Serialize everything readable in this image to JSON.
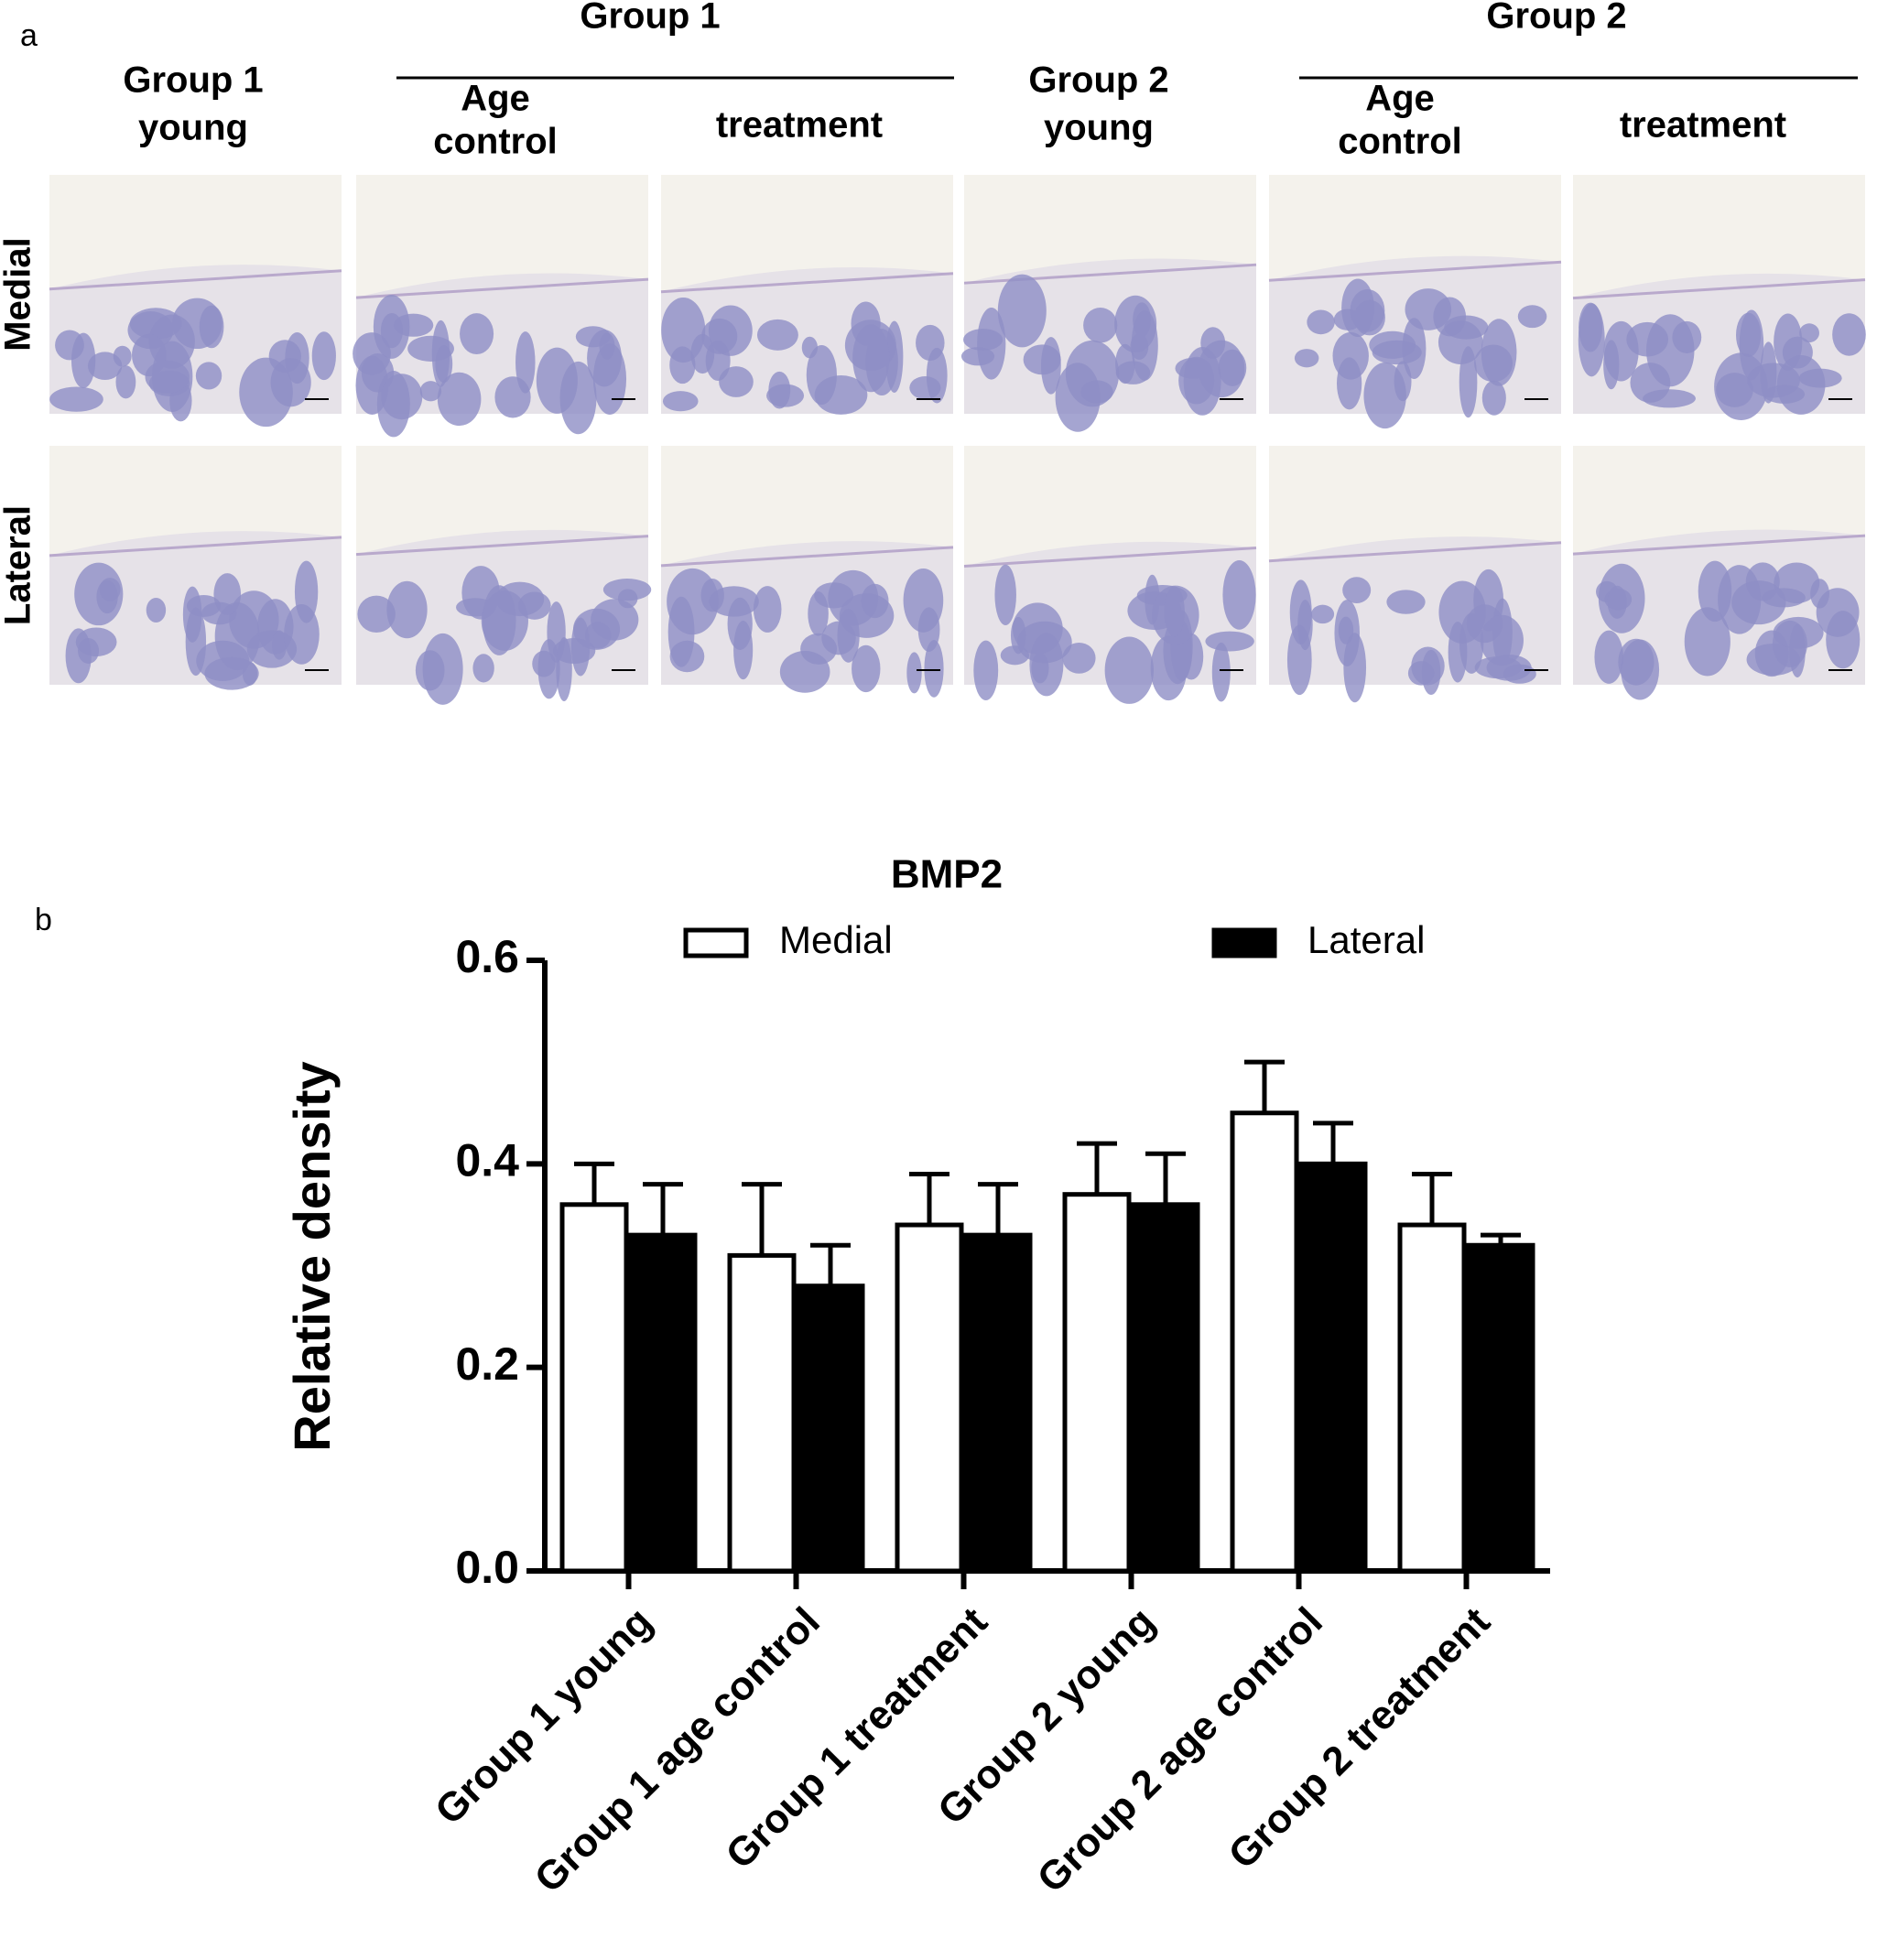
{
  "panel_a": {
    "label": "a",
    "group_headers": [
      "Group 1",
      "Group 2"
    ],
    "column_headers": [
      [
        "Group 1",
        "young"
      ],
      [
        "Age",
        "control"
      ],
      [
        "treatment"
      ],
      [
        "Group 2",
        "young"
      ],
      [
        "Age",
        "control"
      ],
      [
        "treatment"
      ]
    ],
    "row_labels": [
      "Medial",
      "Lateral"
    ]
  },
  "panel_b_label": "b",
  "chart_data": {
    "type": "bar",
    "title": "BMP2",
    "ylabel": "Relative density",
    "categories": [
      "Group 1 young",
      "Group 1 age control",
      "Group 1 treatment",
      "Group 2 young",
      "Group 2 age control",
      "Group 2 treatment"
    ],
    "series": [
      {
        "name": "Medial",
        "color": "#ffffff",
        "values": [
          0.36,
          0.31,
          0.34,
          0.37,
          0.45,
          0.34
        ],
        "errors": [
          0.04,
          0.07,
          0.05,
          0.05,
          0.05,
          0.05
        ]
      },
      {
        "name": "Lateral",
        "color": "#000000",
        "values": [
          0.33,
          0.28,
          0.33,
          0.36,
          0.4,
          0.32
        ],
        "errors": [
          0.05,
          0.04,
          0.05,
          0.05,
          0.04,
          0.01
        ]
      }
    ],
    "ylim": [
      0,
      0.6
    ],
    "yticks": [
      {
        "value": 0,
        "label": "0.0"
      },
      0.2,
      0.4,
      0.6
    ],
    "grid": false
  }
}
